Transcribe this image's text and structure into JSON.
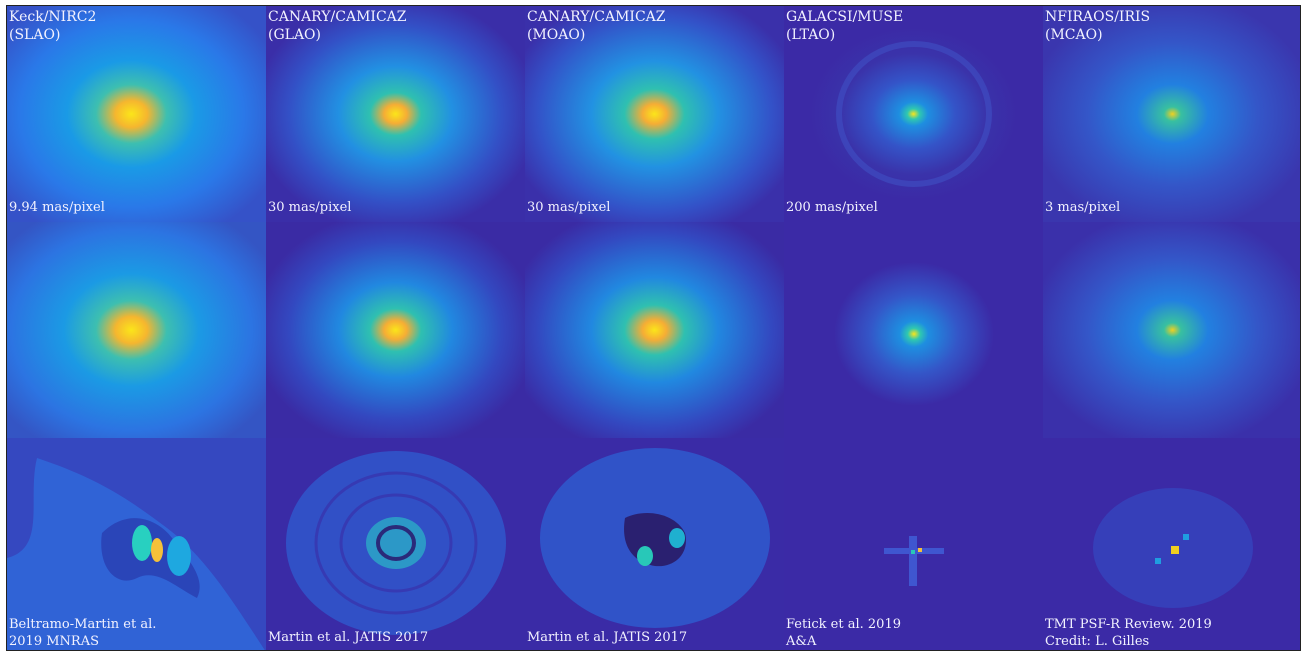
{
  "columns": [
    {
      "instrument": "Keck/NIRC2",
      "mode": "(SLAO)",
      "scale": "9.94 mas/pixel",
      "credit_line1": "Beltramo-Martin et al.",
      "credit_line2": "2019 MNRAS"
    },
    {
      "instrument": "CANARY/CAMICAZ",
      "mode": "(GLAO)",
      "scale": "30 mas/pixel",
      "credit_line1": "Martin et al. JATIS 2017",
      "credit_line2": ""
    },
    {
      "instrument": "CANARY/CAMICAZ",
      "mode": "(MOAO)",
      "scale": "30 mas/pixel",
      "credit_line1": "Martin et al. JATIS 2017",
      "credit_line2": ""
    },
    {
      "instrument": "GALACSI/MUSE",
      "mode": "(LTAO)",
      "scale": "200 mas/pixel",
      "credit_line1": "Fetick et al. 2019",
      "credit_line2": "A&A"
    },
    {
      "instrument": "NFIRAOS/IRIS",
      "mode": "(MCAO)",
      "scale": "3 mas/pixel",
      "credit_line1": "TMT PSF-R Review. 2019",
      "credit_line2": "Credit: L. Gilles"
    }
  ],
  "colors": {
    "background": "#3b28a8",
    "core": "#f9e21e",
    "halo": "#2fb6c2",
    "mid": "#1f8fe0"
  }
}
